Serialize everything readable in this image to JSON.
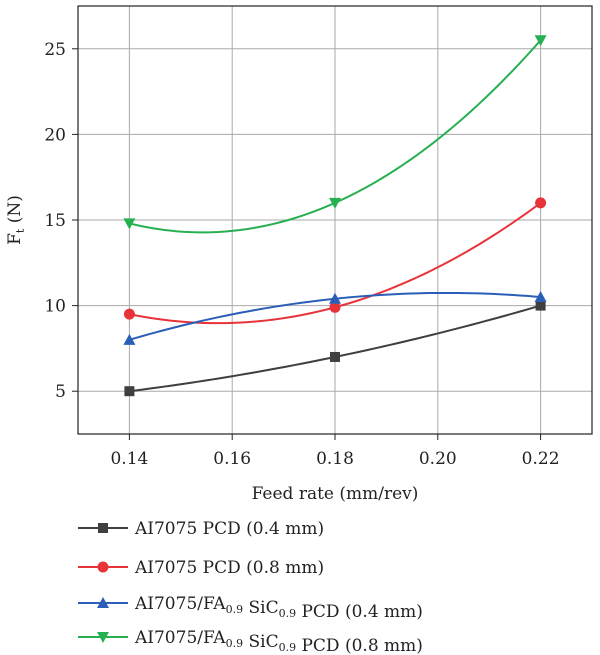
{
  "chart_data": {
    "type": "line",
    "xlabel": "Feed rate (mm/rev)",
    "ylabel_main": "F",
    "ylabel_sub": "t",
    "ylabel_unit": " (N)",
    "xlim": [
      0.13,
      0.23
    ],
    "ylim": [
      2.5,
      27.5
    ],
    "xticks": [
      0.14,
      0.16,
      0.18,
      0.2,
      0.22
    ],
    "xtick_labels": [
      "0.14",
      "0.16",
      "0.18",
      "0.20",
      "0.22"
    ],
    "yticks": [
      5,
      10,
      15,
      20,
      25
    ],
    "ytick_labels": [
      "5",
      "10",
      "15",
      "20",
      "25"
    ],
    "grid": true,
    "legend_position": "bottom",
    "x": [
      0.14,
      0.18,
      0.22
    ],
    "series": [
      {
        "name": "AI7075 PCD (0.4 mm)",
        "label_parts": [
          {
            "t": "AI7075 PCD (0.4 mm)"
          }
        ],
        "values": [
          5.0,
          7.0,
          10.0
        ],
        "color": "#3f3f3f",
        "marker": "square"
      },
      {
        "name": "AI7075 PCD (0.8 mm)",
        "label_parts": [
          {
            "t": "AI7075 PCD (0.8 mm)"
          }
        ],
        "values": [
          9.5,
          9.9,
          16.0
        ],
        "color": "#e8333a",
        "marker": "circle"
      },
      {
        "name": "AI7075/FA0.9 SiC0.9 PCD (0.4 mm)",
        "label_parts": [
          {
            "t": "AI7075/FA"
          },
          {
            "t": "0.9",
            "sub": true
          },
          {
            "t": " SiC"
          },
          {
            "t": "0.9",
            "sub": true
          },
          {
            "t": " PCD (0.4 mm)"
          }
        ],
        "values": [
          8.0,
          10.4,
          10.5
        ],
        "color": "#2a5fb8",
        "marker": "triangle-up"
      },
      {
        "name": "AI7075/FA0.9 SiC0.9 PCD (0.8 mm)",
        "label_parts": [
          {
            "t": "AI7075/FA"
          },
          {
            "t": "0.9",
            "sub": true
          },
          {
            "t": " SiC"
          },
          {
            "t": "0.9",
            "sub": true
          },
          {
            "t": " PCD (0.8 mm)"
          }
        ],
        "values": [
          14.8,
          16.0,
          25.5
        ],
        "color": "#27b052",
        "marker": "triangle-down"
      }
    ]
  }
}
